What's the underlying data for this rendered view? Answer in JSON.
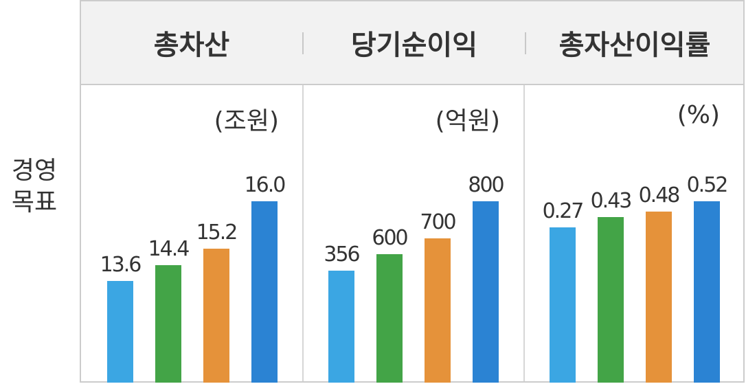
{
  "row_label": [
    "경영",
    "목표"
  ],
  "chart_data": [
    {
      "type": "bar",
      "title": "총차산",
      "unit": "(조원)",
      "values": [
        13.6,
        14.4,
        15.2,
        16.0
      ],
      "labels": [
        "13.6",
        "14.4",
        "15.2",
        "16.0"
      ],
      "colors": [
        "#3ba6e3",
        "#43a447",
        "#e5923a",
        "#2b83d3"
      ]
    },
    {
      "type": "bar",
      "title": "당기순이익",
      "unit": "(억원)",
      "values": [
        356,
        600,
        700,
        800
      ],
      "labels": [
        "356",
        "600",
        "700",
        "800"
      ],
      "colors": [
        "#3ba6e3",
        "#43a447",
        "#e5923a",
        "#2b83d3"
      ]
    },
    {
      "type": "bar",
      "title": "총자산이익률",
      "unit": "(%)",
      "values": [
        0.27,
        0.43,
        0.48,
        0.52
      ],
      "labels": [
        "0.27",
        "0.43",
        "0.48",
        "0.52"
      ],
      "colors": [
        "#3ba6e3",
        "#43a447",
        "#e5923a",
        "#2b83d3"
      ]
    }
  ]
}
